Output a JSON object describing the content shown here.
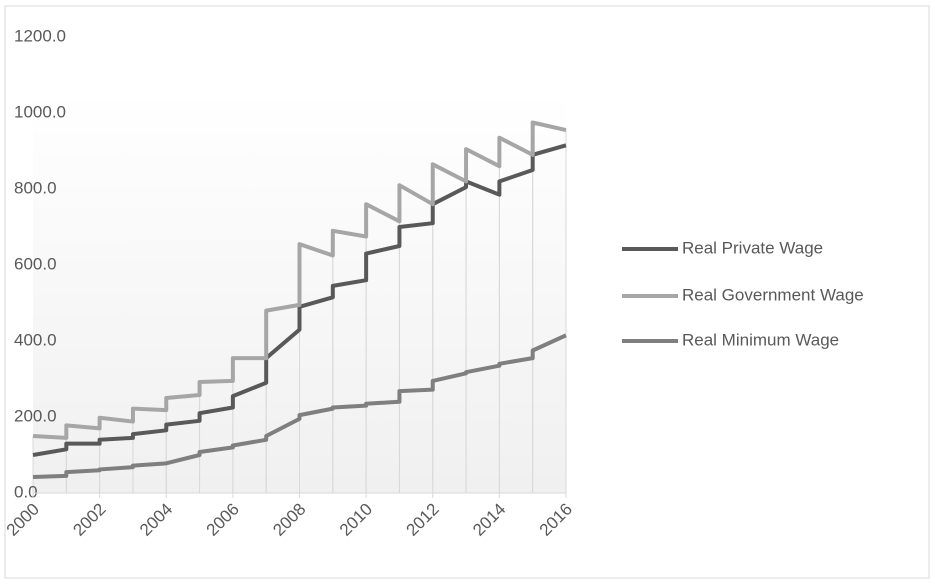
{
  "chart_data": {
    "type": "line",
    "x": [
      2000,
      2001,
      2001,
      2002,
      2002,
      2003,
      2003,
      2004,
      2004,
      2005,
      2005,
      2006,
      2006,
      2007,
      2007,
      2008,
      2008,
      2009,
      2009,
      2010,
      2010,
      2011,
      2011,
      2012,
      2012,
      2013,
      2013,
      2014,
      2014,
      2015,
      2015,
      2016
    ],
    "series": [
      {
        "name": "Real Private Wage",
        "color": "#595959",
        "values": [
          100,
          115,
          130,
          130,
          140,
          145,
          155,
          165,
          180,
          190,
          210,
          225,
          255,
          290,
          355,
          430,
          490,
          515,
          545,
          560,
          630,
          650,
          700,
          710,
          760,
          805,
          820,
          785,
          820,
          850,
          890,
          915
        ]
      },
      {
        "name": "Real Government Wage",
        "color": "#a6a6a6",
        "values": [
          150,
          145,
          178,
          170,
          198,
          188,
          222,
          218,
          250,
          258,
          292,
          295,
          355,
          355,
          480,
          495,
          655,
          625,
          690,
          675,
          760,
          715,
          810,
          760,
          865,
          820,
          905,
          860,
          935,
          890,
          975,
          955
        ]
      },
      {
        "name": "Real Minimum Wage",
        "color": "#7f7f7f",
        "values": [
          42,
          45,
          55,
          60,
          62,
          68,
          72,
          78,
          78,
          100,
          108,
          120,
          125,
          140,
          150,
          195,
          205,
          222,
          225,
          230,
          235,
          240,
          268,
          272,
          295,
          315,
          318,
          335,
          340,
          355,
          375,
          415
        ]
      }
    ],
    "xlim": [
      2000,
      2016
    ],
    "xticks": [
      2000,
      2002,
      2004,
      2006,
      2008,
      2010,
      2012,
      2014,
      2016
    ],
    "ylim": [
      0,
      1200
    ],
    "yticks": [
      {
        "value": 0,
        "label": "0.0"
      },
      {
        "value": 200,
        "label": "200.0"
      },
      {
        "value": 400,
        "label": "400.0"
      },
      {
        "value": 600,
        "label": "600.0"
      },
      {
        "value": 800,
        "label": "800.0"
      },
      {
        "value": 1000,
        "label": "1000.0"
      },
      {
        "value": 1200,
        "label": "1200.0"
      }
    ],
    "legend": "right"
  }
}
